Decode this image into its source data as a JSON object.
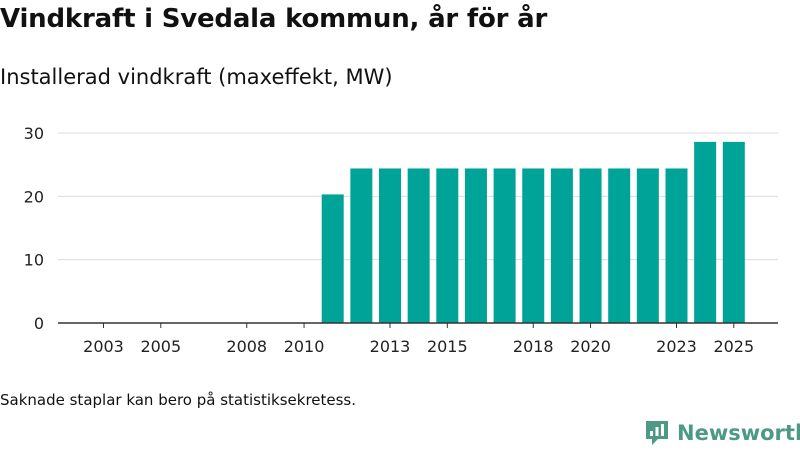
{
  "header": {
    "title": "Vindkraft i Svedala kommun, år för år",
    "subtitle": "Installerad vindkraft (maxeffekt, MW)"
  },
  "footer": {
    "note": "Saknade staplar kan bero på statistiksekretess.",
    "brand": "Newsworthy"
  },
  "colors": {
    "bar": "#00a398",
    "brand": "#4c9a86"
  },
  "icons": {
    "brand_logo": "newsworthy-logo-icon"
  },
  "chart_data": {
    "type": "bar",
    "title": "Installerad vindkraft (maxeffekt, MW)",
    "xlabel": "",
    "ylabel": "",
    "categories": [
      "2003",
      "2004",
      "2005",
      "2006",
      "2007",
      "2008",
      "2009",
      "2010",
      "2011",
      "2012",
      "2013",
      "2014",
      "2015",
      "2016",
      "2017",
      "2018",
      "2019",
      "2020",
      "2021",
      "2022",
      "2023",
      "2024",
      "2025"
    ],
    "values": [
      0,
      0,
      0,
      0,
      0,
      0,
      0,
      0,
      20.3,
      24.4,
      24.4,
      24.4,
      24.4,
      24.4,
      24.4,
      24.4,
      24.4,
      24.4,
      24.4,
      24.4,
      24.4,
      28.6,
      28.6
    ],
    "ylim": [
      0,
      30
    ],
    "yticks": [
      "0",
      "10",
      "20",
      "30"
    ],
    "xtick_labels": [
      "2003",
      "2005",
      "2008",
      "2010",
      "2013",
      "2015",
      "2018",
      "2020",
      "2023",
      "2025"
    ],
    "grid": true,
    "legend": "none"
  }
}
